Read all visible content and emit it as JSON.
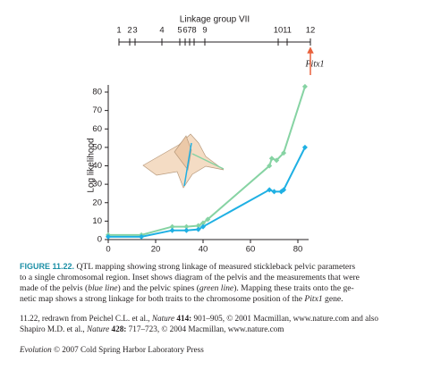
{
  "chart_data": {
    "type": "line",
    "title": "Linkage group VII",
    "markers": [
      "1",
      "2",
      "3",
      "4",
      "5",
      "6",
      "7",
      "8",
      "9",
      "10",
      "11",
      "12"
    ],
    "annotation": "Pitx1",
    "y_label": "Log likelihood",
    "xlim": [
      0,
      80
    ],
    "xticks": [
      0,
      20,
      40,
      60,
      80
    ],
    "ylim": [
      0,
      80
    ],
    "yticks": [
      0,
      10,
      20,
      30,
      40,
      50,
      60,
      70,
      80
    ],
    "series": [
      {
        "name": "pelvic spines",
        "color": "#86d3a3",
        "x": [
          0,
          14,
          27,
          33,
          38,
          40,
          42,
          68,
          69,
          71,
          74,
          83
        ],
        "values": [
          2.5,
          2.5,
          7,
          7,
          7.5,
          9,
          11,
          40,
          44,
          43,
          47,
          83
        ]
      },
      {
        "name": "pelvis",
        "color": "#1fb0e3",
        "x": [
          0,
          14,
          27,
          33,
          38,
          40,
          68,
          70,
          73,
          74,
          83
        ],
        "values": [
          1.5,
          1.5,
          5,
          5,
          5.5,
          7,
          27,
          26,
          26,
          27,
          50
        ]
      }
    ]
  },
  "caption": {
    "label": "FIGURE 11.22.",
    "l1": "QTL mapping showing strong linkage of measured stickleback pelvic parameters",
    "l2": "to a single chromosomal region. Inset shows diagram of the pelvis and the measurements that were",
    "l3a": "made of the pelvis (",
    "l3b": "blue line",
    "l3c": ") and the pelvic spines (",
    "l3d": "green line",
    "l3e": "). Mapping these traits onto the ge-",
    "l4a": "netic map shows a strong linkage for both traits to the chromosome position of the ",
    "l4b": "Pitx1",
    "l4c": " gene."
  },
  "credits": {
    "c1a": "11.22, redrawn from Peichel C.L. et al., ",
    "c1b": "Nature",
    "c1c": " 414:",
    "c1d": " 901–905, © 2001 Macmillan, www.nature.com and also",
    "c2a": "Shapiro M.D. et al., ",
    "c2b": "Nature",
    "c2c": " 428:",
    "c2d": " 717–723, © 2004 Macmillan, www.nature.com",
    "c3a": "Evolution",
    "c3b": " © 2007 Cold Spring Harbor Laboratory Press"
  }
}
